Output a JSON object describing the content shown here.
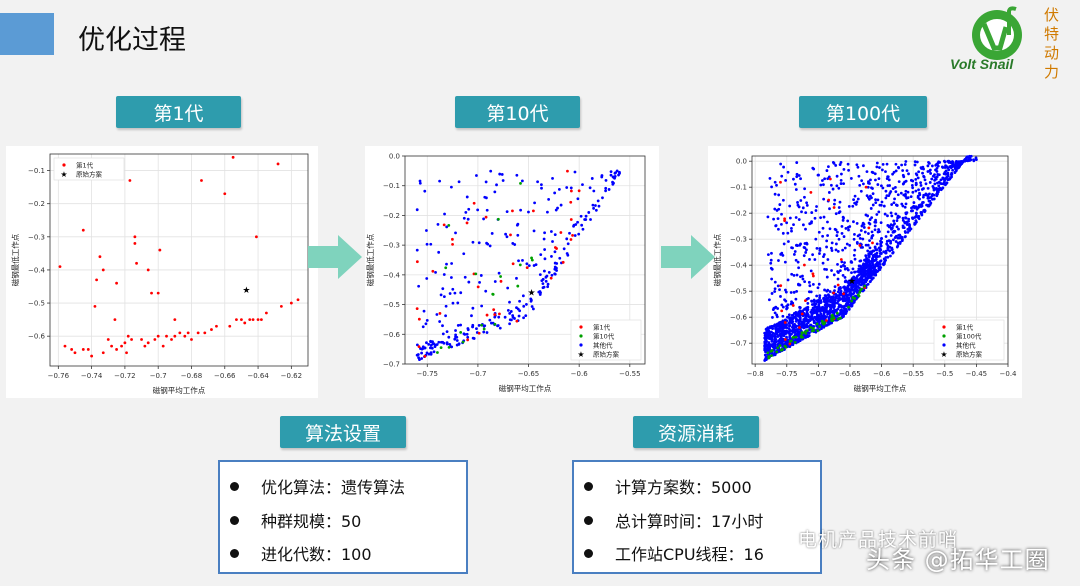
{
  "header": {
    "title": "优化过程"
  },
  "logo": {
    "brand_text": "Volt Snail",
    "chars": [
      "伏",
      "特",
      "动",
      "力"
    ]
  },
  "generations": [
    {
      "label": "第1代"
    },
    {
      "label": "第10代"
    },
    {
      "label": "第100代"
    }
  ],
  "sections": {
    "algorithm": {
      "label": "算法设置",
      "items": [
        "优化算法：遗传算法",
        "种群规模：50",
        "进化代数：100"
      ]
    },
    "resources": {
      "label": "资源消耗",
      "items": [
        "计算方案数：5000",
        "总计算时间：17小时",
        "工作站CPU线程：16"
      ]
    }
  },
  "watermark": {
    "line1": "电机产品技术前哨",
    "line2": "头条 @拓华工圈"
  },
  "colors": {
    "accent": "#5b9bd5",
    "label_bg": "#2e9cad",
    "arrow": "#7fd3bd",
    "box_border": "#4a7fc1",
    "logo_green": "#3aa635"
  },
  "chart_data": [
    {
      "type": "scatter",
      "xlabel": "磁钢平均工作点",
      "ylabel": "磁钢最低工作点",
      "xlim": [
        -0.765,
        -0.61
      ],
      "ylim": [
        -0.69,
        -0.05
      ],
      "xticks": [
        -0.76,
        -0.74,
        -0.72,
        -0.7,
        -0.68,
        -0.66,
        -0.64,
        -0.62
      ],
      "yticks": [
        -0.1,
        -0.2,
        -0.3,
        -0.4,
        -0.5,
        -0.6
      ],
      "legend_position": "top-left",
      "series": [
        {
          "name": "第1代",
          "color": "#ff0000",
          "marker": "dot",
          "points": [
            [
              -0.759,
              -0.39
            ],
            [
              -0.756,
              -0.63
            ],
            [
              -0.752,
              -0.64
            ],
            [
              -0.75,
              -0.65
            ],
            [
              -0.745,
              -0.64
            ],
            [
              -0.742,
              -0.64
            ],
            [
              -0.74,
              -0.66
            ],
            [
              -0.738,
              -0.51
            ],
            [
              -0.735,
              -0.36
            ],
            [
              -0.733,
              -0.65
            ],
            [
              -0.73,
              -0.61
            ],
            [
              -0.728,
              -0.63
            ],
            [
              -0.726,
              -0.55
            ],
            [
              -0.725,
              -0.64
            ],
            [
              -0.722,
              -0.63
            ],
            [
              -0.72,
              -0.62
            ],
            [
              -0.719,
              -0.65
            ],
            [
              -0.718,
              -0.6
            ],
            [
              -0.717,
              -0.13
            ],
            [
              -0.716,
              -0.61
            ],
            [
              -0.714,
              -0.32
            ],
            [
              -0.713,
              -0.38
            ],
            [
              -0.71,
              -0.61
            ],
            [
              -0.708,
              -0.63
            ],
            [
              -0.706,
              -0.62
            ],
            [
              -0.704,
              -0.47
            ],
            [
              -0.702,
              -0.61
            ],
            [
              -0.7,
              -0.6
            ],
            [
              -0.699,
              -0.34
            ],
            [
              -0.697,
              -0.63
            ],
            [
              -0.695,
              -0.6
            ],
            [
              -0.692,
              -0.61
            ],
            [
              -0.69,
              -0.6
            ],
            [
              -0.687,
              -0.59
            ],
            [
              -0.684,
              -0.6
            ],
            [
              -0.682,
              -0.59
            ],
            [
              -0.68,
              -0.61
            ],
            [
              -0.676,
              -0.59
            ],
            [
              -0.674,
              -0.13
            ],
            [
              -0.672,
              -0.59
            ],
            [
              -0.668,
              -0.58
            ],
            [
              -0.665,
              -0.57
            ],
            [
              -0.66,
              -0.17
            ],
            [
              -0.657,
              -0.57
            ],
            [
              -0.655,
              -0.06
            ],
            [
              -0.653,
              -0.55
            ],
            [
              -0.65,
              -0.55
            ],
            [
              -0.648,
              -0.56
            ],
            [
              -0.645,
              -0.55
            ],
            [
              -0.643,
              -0.55
            ],
            [
              -0.641,
              -0.3
            ],
            [
              -0.64,
              -0.55
            ],
            [
              -0.638,
              -0.55
            ],
            [
              -0.635,
              -0.53
            ],
            [
              -0.628,
              -0.08
            ],
            [
              -0.626,
              -0.51
            ],
            [
              -0.62,
              -0.5
            ],
            [
              -0.616,
              -0.49
            ],
            [
              -0.745,
              -0.28
            ],
            [
              -0.725,
              -0.44
            ],
            [
              -0.706,
              -0.4
            ],
            [
              -0.69,
              -0.55
            ],
            [
              -0.737,
              -0.43
            ],
            [
              -0.733,
              -0.4
            ],
            [
              -0.714,
              -0.3
            ],
            [
              -0.7,
              -0.47
            ]
          ]
        },
        {
          "name": "原始方案",
          "color": "#000000",
          "marker": "star",
          "points": [
            [
              -0.647,
              -0.46
            ]
          ]
        }
      ]
    },
    {
      "type": "scatter",
      "xlabel": "磁钢平均工作点",
      "ylabel": "磁钢最低工作点",
      "xlim": [
        -0.772,
        -0.535
      ],
      "ylim": [
        -0.7,
        0.0
      ],
      "xticks": [
        -0.75,
        -0.7,
        -0.65,
        -0.6,
        -0.55
      ],
      "yticks": [
        0.0,
        -0.1,
        -0.2,
        -0.3,
        -0.4,
        -0.5,
        -0.6,
        -0.7
      ],
      "legend_position": "bottom-right",
      "series": [
        {
          "name": "第1代",
          "color": "#ff0000",
          "marker": "dot"
        },
        {
          "name": "第10代",
          "color": "#00a000",
          "marker": "dot"
        },
        {
          "name": "其他代",
          "color": "#0000ff",
          "marker": "dot"
        },
        {
          "name": "原始方案",
          "color": "#000000",
          "marker": "star",
          "points": [
            [
              -0.647,
              -0.46
            ]
          ]
        }
      ]
    },
    {
      "type": "scatter",
      "xlabel": "磁钢平均工作点",
      "ylabel": "磁钢最低工作点",
      "xlim": [
        -0.805,
        -0.4
      ],
      "ylim": [
        -0.78,
        0.02
      ],
      "xticks": [
        -0.8,
        -0.75,
        -0.7,
        -0.65,
        -0.6,
        -0.55,
        -0.5,
        -0.45,
        -0.4
      ],
      "yticks": [
        0.0,
        -0.1,
        -0.2,
        -0.3,
        -0.4,
        -0.5,
        -0.6,
        -0.7
      ],
      "legend_position": "bottom-right",
      "series": [
        {
          "name": "第1代",
          "color": "#ff0000",
          "marker": "dot"
        },
        {
          "name": "第100代",
          "color": "#00a000",
          "marker": "dot"
        },
        {
          "name": "其他代",
          "color": "#0000ff",
          "marker": "dot"
        },
        {
          "name": "原始方案",
          "color": "#000000",
          "marker": "star",
          "points": [
            [
              -0.647,
              -0.46
            ]
          ]
        }
      ]
    }
  ]
}
